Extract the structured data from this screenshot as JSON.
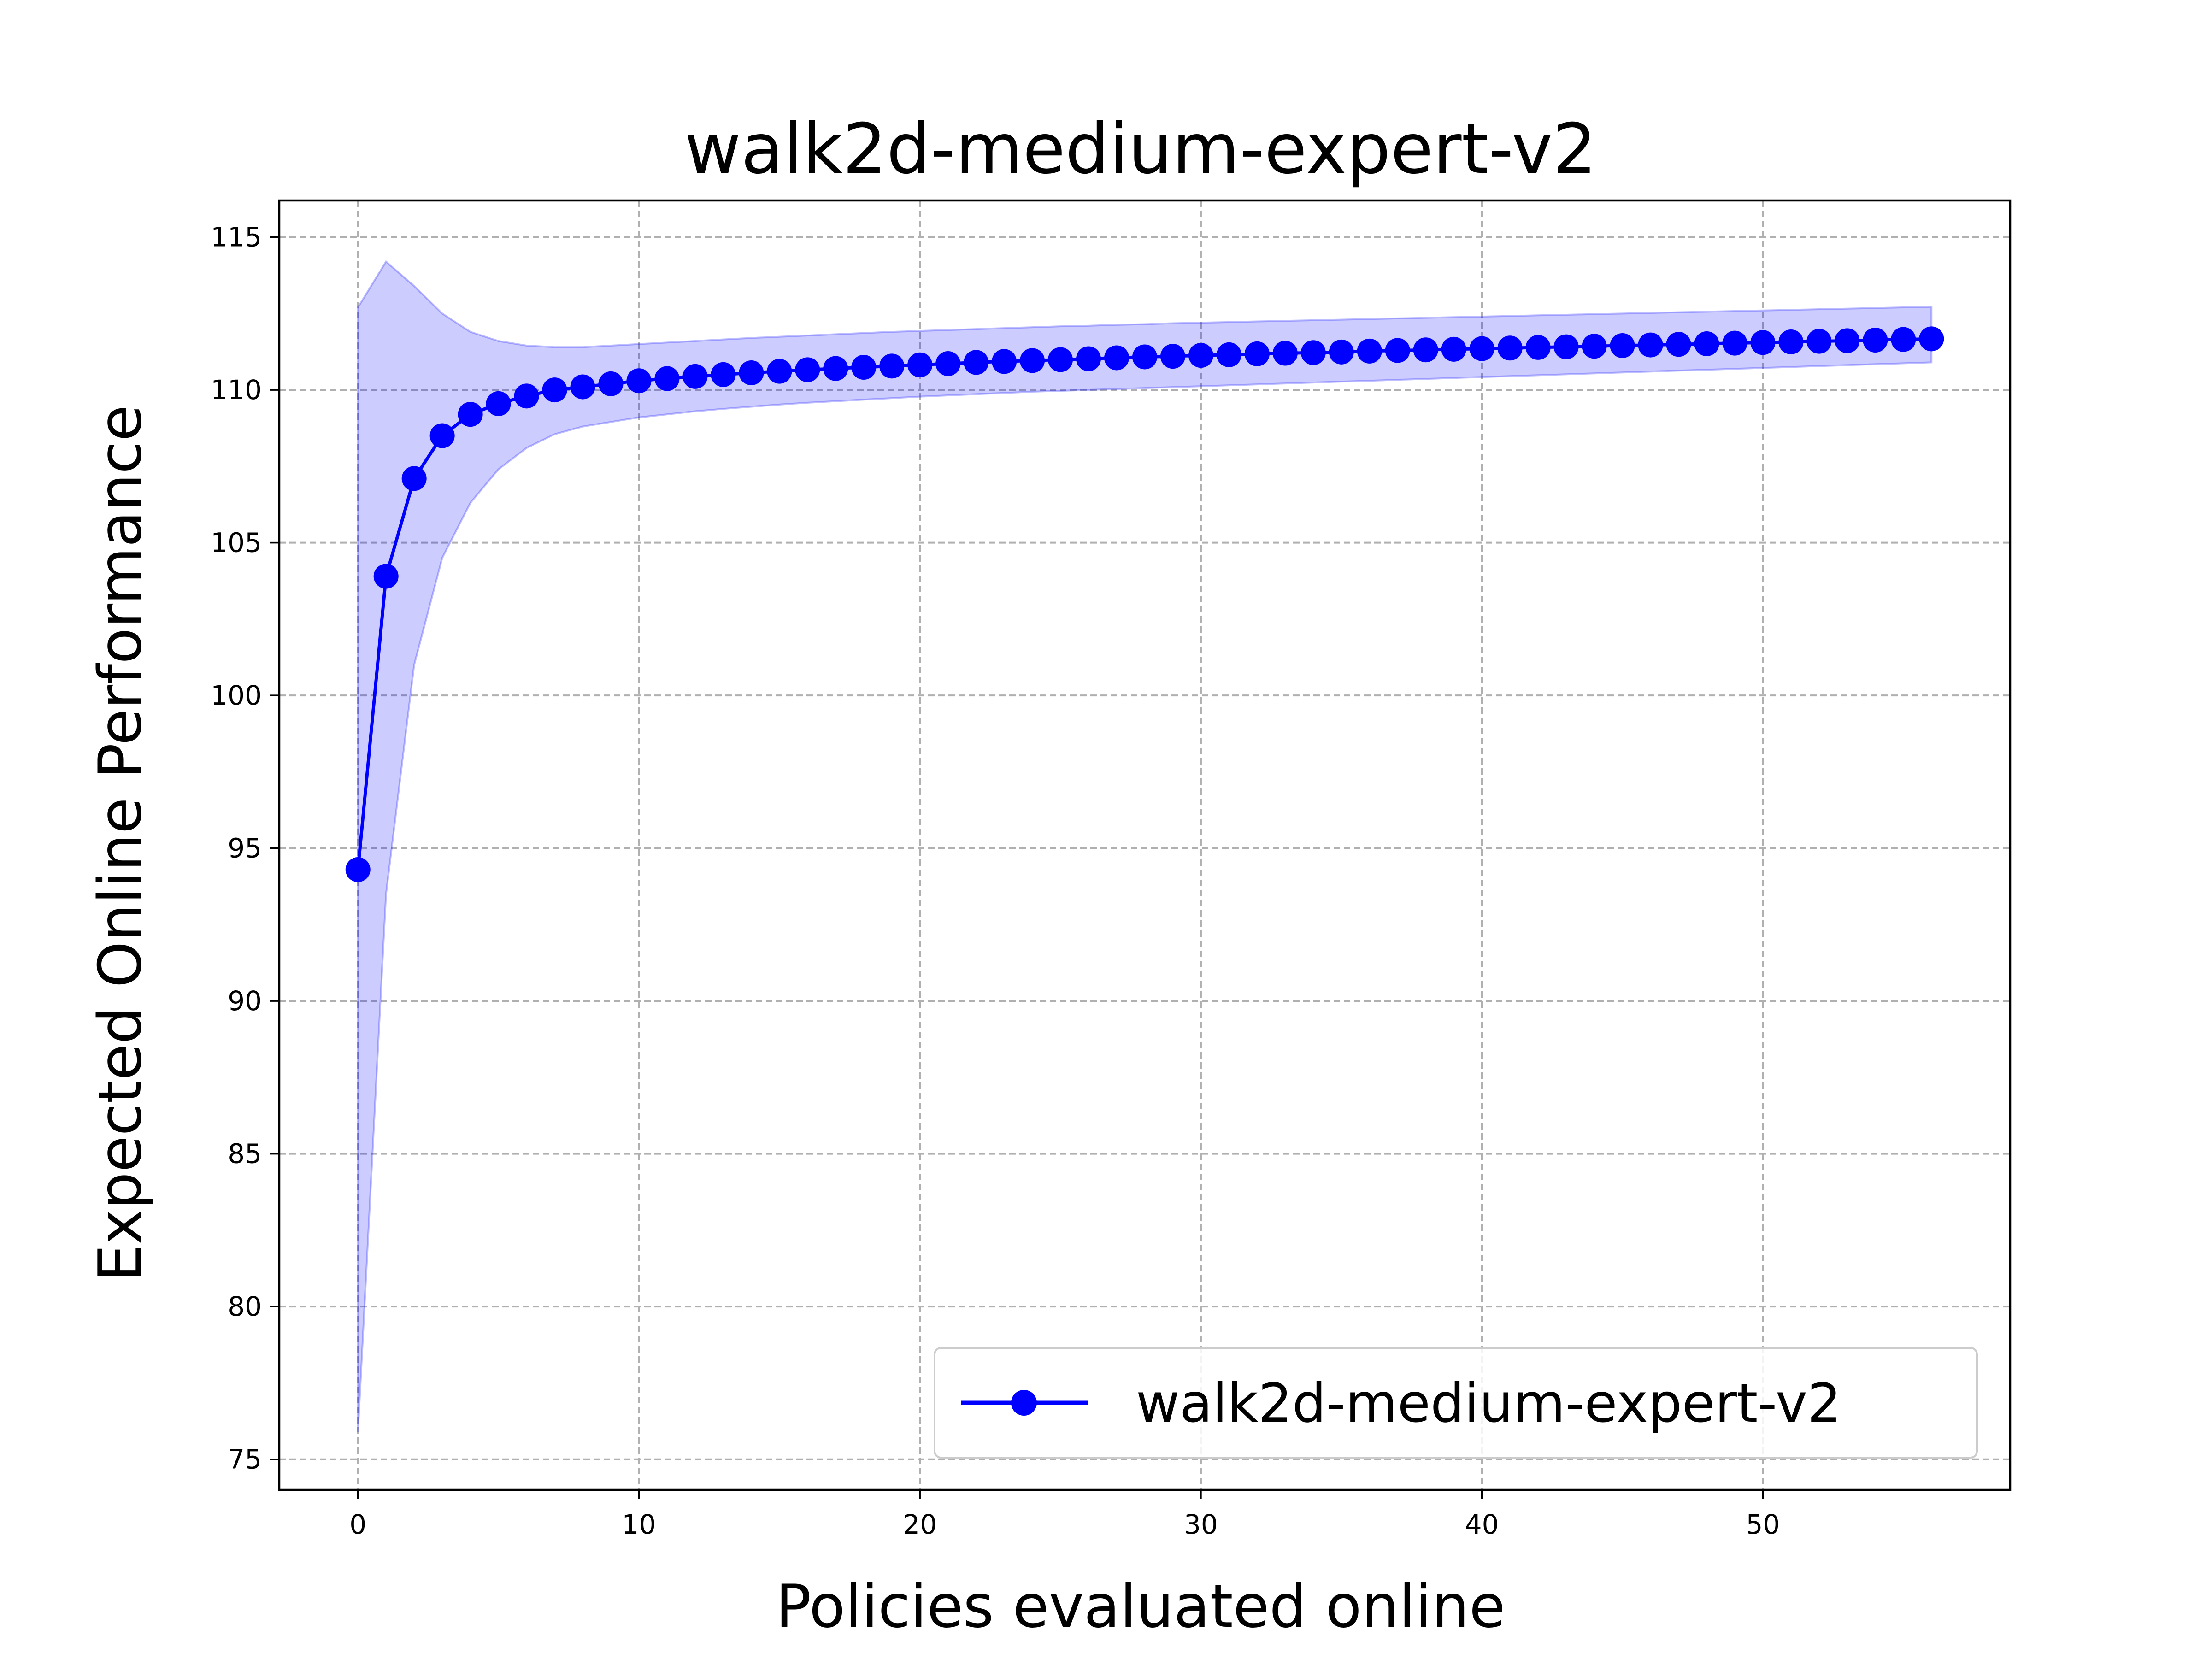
{
  "chart_data": {
    "type": "line",
    "title": "walk2d-medium-expert-v2",
    "xlabel": "Policies evaluated online",
    "ylabel": "Expected Online Performance",
    "xlim": [
      -2.8,
      58.8
    ],
    "ylim": [
      74.0,
      116.2
    ],
    "x_ticks": [
      0,
      10,
      20,
      30,
      40,
      50
    ],
    "y_ticks": [
      75,
      80,
      85,
      90,
      95,
      100,
      105,
      110,
      115
    ],
    "grid": true,
    "legend": "bottom-right",
    "colors": {
      "line": "#0000ff",
      "band": "#0000ff",
      "grid": "#b0b0b0",
      "axes": "#000000"
    },
    "series": [
      {
        "name": "walk2d-medium-expert-v2",
        "marker": "circle",
        "x": [
          0,
          1,
          2,
          3,
          4,
          5,
          6,
          7,
          8,
          9,
          10,
          11,
          12,
          13,
          14,
          15,
          16,
          17,
          18,
          19,
          20,
          21,
          22,
          23,
          24,
          25,
          26,
          27,
          28,
          29,
          30,
          31,
          32,
          33,
          34,
          35,
          36,
          37,
          38,
          39,
          40,
          41,
          42,
          43,
          44,
          45,
          46,
          47,
          48,
          49,
          50,
          51,
          52,
          53,
          54,
          55,
          56
        ],
        "y": [
          94.3,
          103.9,
          107.1,
          108.5,
          109.2,
          109.55,
          109.8,
          110.0,
          110.1,
          110.2,
          110.3,
          110.37,
          110.44,
          110.5,
          110.56,
          110.61,
          110.66,
          110.7,
          110.74,
          110.78,
          110.82,
          110.86,
          110.9,
          110.93,
          110.96,
          110.99,
          111.02,
          111.05,
          111.08,
          111.1,
          111.13,
          111.15,
          111.18,
          111.2,
          111.22,
          111.24,
          111.27,
          111.29,
          111.31,
          111.33,
          111.35,
          111.37,
          111.39,
          111.41,
          111.43,
          111.45,
          111.47,
          111.49,
          111.51,
          111.53,
          111.55,
          111.57,
          111.59,
          111.61,
          111.63,
          111.65,
          111.67
        ],
        "upper": [
          112.7,
          114.2,
          113.4,
          112.5,
          111.9,
          111.6,
          111.45,
          111.4,
          111.4,
          111.45,
          111.5,
          111.55,
          111.6,
          111.65,
          111.7,
          111.74,
          111.78,
          111.82,
          111.86,
          111.9,
          111.93,
          111.96,
          111.99,
          112.02,
          112.05,
          112.08,
          112.1,
          112.13,
          112.15,
          112.18,
          112.2,
          112.22,
          112.24,
          112.26,
          112.28,
          112.3,
          112.32,
          112.34,
          112.36,
          112.38,
          112.4,
          112.42,
          112.44,
          112.46,
          112.48,
          112.5,
          112.52,
          112.54,
          112.56,
          112.58,
          112.6,
          112.62,
          112.64,
          112.66,
          112.68,
          112.7,
          112.72
        ],
        "lower": [
          75.9,
          93.5,
          101.0,
          104.5,
          106.3,
          107.4,
          108.1,
          108.55,
          108.8,
          108.95,
          109.1,
          109.2,
          109.3,
          109.38,
          109.45,
          109.52,
          109.58,
          109.63,
          109.68,
          109.73,
          109.78,
          109.82,
          109.86,
          109.9,
          109.94,
          109.97,
          110.0,
          110.03,
          110.06,
          110.09,
          110.12,
          110.15,
          110.18,
          110.21,
          110.24,
          110.27,
          110.3,
          110.33,
          110.36,
          110.39,
          110.42,
          110.45,
          110.48,
          110.51,
          110.54,
          110.57,
          110.6,
          110.63,
          110.66,
          110.69,
          110.72,
          110.75,
          110.78,
          110.81,
          110.84,
          110.87,
          110.9
        ]
      }
    ]
  }
}
